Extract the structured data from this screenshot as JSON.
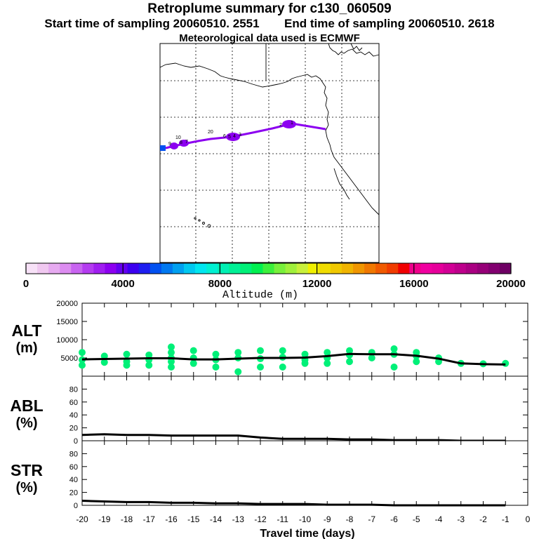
{
  "header": {
    "title": "Retroplume summary for c130_060509",
    "start_label": "Start time of sampling 20060510.  2551",
    "end_label": "End time of sampling 20060510.  2618",
    "met_label": "Meteorological data used is ECMWF"
  },
  "map": {
    "day_labels": [
      "1",
      "2",
      "3",
      "4",
      "5",
      "6",
      "7",
      "8",
      "9",
      "10",
      "20"
    ]
  },
  "colorbar": {
    "title": "Altitude (m)",
    "tick_labels": [
      "0",
      "4000",
      "8000",
      "12000",
      "16000",
      "20000"
    ],
    "colors": [
      "#f7e1f7",
      "#f0c8f0",
      "#e6aaf0",
      "#dc8cf0",
      "#c864f0",
      "#b43cf0",
      "#a01ef0",
      "#8c00f0",
      "#6400f0",
      "#3c00f0",
      "#1e1ef0",
      "#0050f0",
      "#0078f0",
      "#00a0f0",
      "#00c8f0",
      "#00e6f0",
      "#00f0d2",
      "#00f0b4",
      "#00f096",
      "#00f078",
      "#00f050",
      "#3cf03c",
      "#78f03c",
      "#a0f03c",
      "#c8f03c",
      "#f0f000",
      "#f0dc00",
      "#f0c800",
      "#f0b400",
      "#f09600",
      "#f07800",
      "#f05a00",
      "#f03c00",
      "#f00000",
      "#f0008c",
      "#f000a0",
      "#e6009b",
      "#d20096",
      "#be008c",
      "#aa0082",
      "#960078",
      "#820070",
      "#6e0064"
    ]
  },
  "chart_data": [
    {
      "type": "scatter",
      "panel_label": "ALT",
      "unit_label": "(m)",
      "xlabel": "Travel time (days)",
      "x_tick_labels": [
        "-20",
        "-19",
        "-18",
        "-17",
        "-16",
        "-15",
        "-14",
        "-13",
        "-12",
        "-11",
        "-10",
        "-9",
        "-8",
        "-7",
        "-6",
        "-5",
        "-4",
        "-3",
        "-2",
        "-1",
        "0"
      ],
      "y_tick_labels": [
        "5000",
        "10000",
        "15000",
        "20000"
      ],
      "ylim": [
        0,
        20000
      ],
      "xlim": [
        -20,
        0
      ],
      "mean_line": {
        "x": [
          -20,
          -19,
          -18,
          -17,
          -16,
          -15,
          -14,
          -13,
          -12,
          -11,
          -10,
          -9,
          -8,
          -7,
          -6,
          -5,
          -4,
          -3,
          -2,
          -1
        ],
        "y": [
          4600,
          4700,
          4800,
          4900,
          4900,
          4600,
          4600,
          4800,
          5000,
          5000,
          5100,
          5500,
          6100,
          6000,
          6000,
          5600,
          4800,
          3500,
          3300,
          3200
        ]
      },
      "points": [
        {
          "x": -20,
          "y": 6500
        },
        {
          "x": -20,
          "y": 4500
        },
        {
          "x": -20,
          "y": 3000
        },
        {
          "x": -19,
          "y": 5500
        },
        {
          "x": -19,
          "y": 3800
        },
        {
          "x": -18,
          "y": 6000
        },
        {
          "x": -18,
          "y": 4000
        },
        {
          "x": -18,
          "y": 3000
        },
        {
          "x": -17,
          "y": 5800
        },
        {
          "x": -17,
          "y": 4500
        },
        {
          "x": -17,
          "y": 3000
        },
        {
          "x": -16,
          "y": 8000
        },
        {
          "x": -16,
          "y": 6500
        },
        {
          "x": -16,
          "y": 5000
        },
        {
          "x": -16,
          "y": 4000
        },
        {
          "x": -16,
          "y": 2500
        },
        {
          "x": -15,
          "y": 7000
        },
        {
          "x": -15,
          "y": 5000
        },
        {
          "x": -15,
          "y": 3500
        },
        {
          "x": -14,
          "y": 6000
        },
        {
          "x": -14,
          "y": 4500
        },
        {
          "x": -14,
          "y": 2500
        },
        {
          "x": -13,
          "y": 6500
        },
        {
          "x": -13,
          "y": 5000
        },
        {
          "x": -13,
          "y": 1200
        },
        {
          "x": -12,
          "y": 7000
        },
        {
          "x": -12,
          "y": 4800
        },
        {
          "x": -12,
          "y": 2500
        },
        {
          "x": -11,
          "y": 7000
        },
        {
          "x": -11,
          "y": 5200
        },
        {
          "x": -11,
          "y": 2500
        },
        {
          "x": -10,
          "y": 6000
        },
        {
          "x": -10,
          "y": 4500
        },
        {
          "x": -10,
          "y": 3500
        },
        {
          "x": -9,
          "y": 6500
        },
        {
          "x": -9,
          "y": 5000
        },
        {
          "x": -9,
          "y": 3500
        },
        {
          "x": -8,
          "y": 7000
        },
        {
          "x": -8,
          "y": 5800
        },
        {
          "x": -8,
          "y": 4000
        },
        {
          "x": -7,
          "y": 6500
        },
        {
          "x": -7,
          "y": 5000
        },
        {
          "x": -6,
          "y": 7500
        },
        {
          "x": -6,
          "y": 6000
        },
        {
          "x": -6,
          "y": 2500
        },
        {
          "x": -5,
          "y": 6500
        },
        {
          "x": -5,
          "y": 5500
        },
        {
          "x": -5,
          "y": 4000
        },
        {
          "x": -4,
          "y": 5000
        },
        {
          "x": -4,
          "y": 4000
        },
        {
          "x": -3,
          "y": 3500
        },
        {
          "x": -2,
          "y": 3400
        },
        {
          "x": -1,
          "y": 3500
        }
      ]
    },
    {
      "type": "line",
      "panel_label": "ABL",
      "unit_label": "(%)",
      "y_tick_labels": [
        "0",
        "20",
        "40",
        "60",
        "80"
      ],
      "ylim": [
        0,
        100
      ],
      "xlim": [
        -20,
        0
      ],
      "x": [
        -20,
        -19,
        -18,
        -17,
        -16,
        -15,
        -14,
        -13,
        -12,
        -11,
        -10,
        -9,
        -8,
        -7,
        -6,
        -5,
        -4,
        -3,
        -2,
        -1
      ],
      "y": [
        9,
        10,
        9,
        9,
        8,
        8,
        8,
        8,
        5,
        3,
        3,
        3,
        2,
        2,
        1,
        1,
        1,
        0,
        0,
        0
      ]
    },
    {
      "type": "line",
      "panel_label": "STR",
      "unit_label": "(%)",
      "y_tick_labels": [
        "0",
        "20",
        "40",
        "60",
        "80"
      ],
      "ylim": [
        0,
        100
      ],
      "xlim": [
        -20,
        0
      ],
      "x": [
        -20,
        -19,
        -18,
        -17,
        -16,
        -15,
        -14,
        -13,
        -12,
        -11,
        -10,
        -9,
        -8,
        -7,
        -6,
        -5,
        -4,
        -3,
        -2,
        -1
      ],
      "y": [
        7,
        6,
        5,
        5,
        4,
        4,
        3,
        3,
        2,
        2,
        2,
        1,
        1,
        1,
        0,
        0,
        0,
        0,
        0,
        0
      ]
    }
  ]
}
